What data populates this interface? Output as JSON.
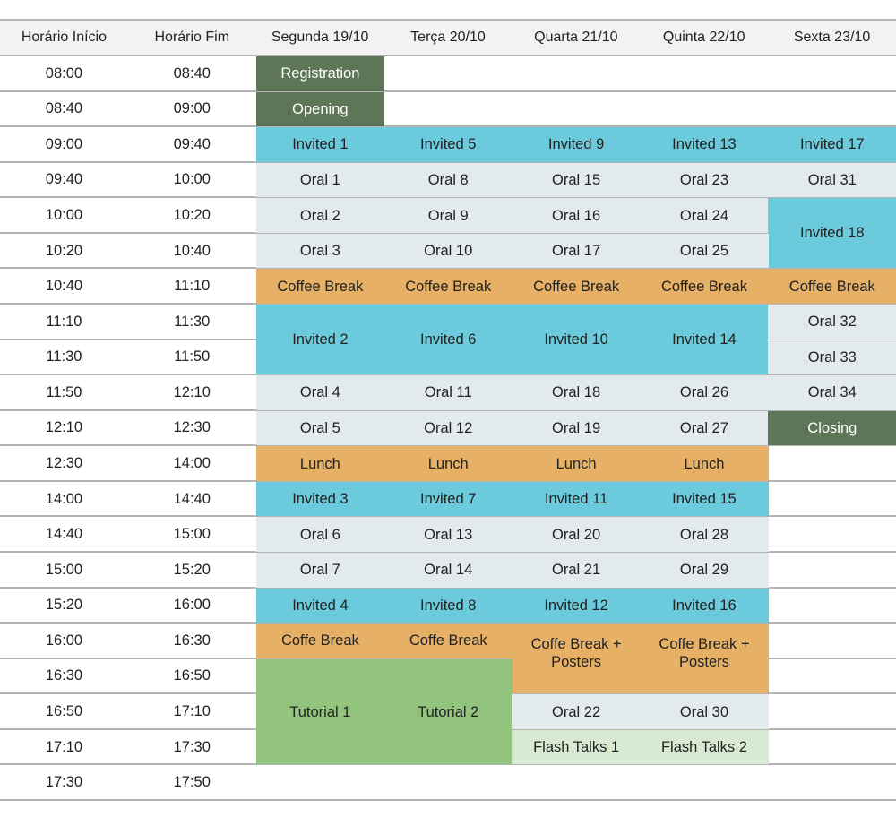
{
  "headers": [
    "Horário Início",
    "Horário Fim",
    "Segunda 19/10",
    "Terça 20/10",
    "Quarta 21/10",
    "Quinta 22/10",
    "Sexta 23/10"
  ],
  "times": [
    [
      "08:00",
      "08:40"
    ],
    [
      "08:40",
      "09:00"
    ],
    [
      "09:00",
      "09:40"
    ],
    [
      "09:40",
      "10:00"
    ],
    [
      "10:00",
      "10:20"
    ],
    [
      "10:20",
      "10:40"
    ],
    [
      "10:40",
      "11:10"
    ],
    [
      "11:10",
      "11:30"
    ],
    [
      "11:30",
      "11:50"
    ],
    [
      "11:50",
      "12:10"
    ],
    [
      "12:10",
      "12:30"
    ],
    [
      "12:30",
      "14:00"
    ],
    [
      "14:00",
      "14:40"
    ],
    [
      "14:40",
      "15:00"
    ],
    [
      "15:00",
      "15:20"
    ],
    [
      "15:20",
      "16:00"
    ],
    [
      "16:00",
      "16:30"
    ],
    [
      "16:30",
      "16:50"
    ],
    [
      "16:50",
      "17:10"
    ],
    [
      "17:10",
      "17:30"
    ],
    [
      "17:30",
      "17:50"
    ]
  ],
  "colors": {
    "ceremony": "#5e7658",
    "invited": "#6bcbdc",
    "oral": "#e2eaed",
    "break": "#e6b066",
    "tutorial": "#93c47d",
    "flash": "#d9ead3",
    "header": "#f2f2f2",
    "gridline": "#b3b3b3"
  },
  "events": [
    {
      "day": 0,
      "row": 0,
      "span": 1,
      "label": "Registration",
      "type": "ceremony"
    },
    {
      "day": 0,
      "row": 1,
      "span": 1,
      "label": "Opening",
      "type": "ceremony"
    },
    {
      "day": 0,
      "row": 2,
      "span": 1,
      "label": "Invited 1",
      "type": "invited"
    },
    {
      "day": 1,
      "row": 2,
      "span": 1,
      "label": "Invited 5",
      "type": "invited"
    },
    {
      "day": 2,
      "row": 2,
      "span": 1,
      "label": "Invited 9",
      "type": "invited"
    },
    {
      "day": 3,
      "row": 2,
      "span": 1,
      "label": "Invited 13",
      "type": "invited"
    },
    {
      "day": 4,
      "row": 2,
      "span": 1,
      "label": "Invited 17",
      "type": "invited"
    },
    {
      "day": 0,
      "row": 3,
      "span": 1,
      "label": "Oral 1",
      "type": "oral"
    },
    {
      "day": 1,
      "row": 3,
      "span": 1,
      "label": "Oral 8",
      "type": "oral"
    },
    {
      "day": 2,
      "row": 3,
      "span": 1,
      "label": "Oral 15",
      "type": "oral"
    },
    {
      "day": 3,
      "row": 3,
      "span": 1,
      "label": "Oral 23",
      "type": "oral"
    },
    {
      "day": 4,
      "row": 3,
      "span": 1,
      "label": "Oral 31",
      "type": "oral"
    },
    {
      "day": 0,
      "row": 4,
      "span": 1,
      "label": "Oral 2",
      "type": "oral"
    },
    {
      "day": 1,
      "row": 4,
      "span": 1,
      "label": "Oral 9",
      "type": "oral"
    },
    {
      "day": 2,
      "row": 4,
      "span": 1,
      "label": "Oral 16",
      "type": "oral"
    },
    {
      "day": 3,
      "row": 4,
      "span": 1,
      "label": "Oral 24",
      "type": "oral"
    },
    {
      "day": 4,
      "row": 4,
      "span": 2,
      "label": "Invited 18",
      "type": "invited"
    },
    {
      "day": 0,
      "row": 5,
      "span": 1,
      "label": "Oral 3",
      "type": "oral"
    },
    {
      "day": 1,
      "row": 5,
      "span": 1,
      "label": "Oral 10",
      "type": "oral"
    },
    {
      "day": 2,
      "row": 5,
      "span": 1,
      "label": "Oral 17",
      "type": "oral"
    },
    {
      "day": 3,
      "row": 5,
      "span": 1,
      "label": "Oral 25",
      "type": "oral"
    },
    {
      "day": 0,
      "row": 6,
      "span": 1,
      "label": "Coffee Break",
      "type": "break"
    },
    {
      "day": 1,
      "row": 6,
      "span": 1,
      "label": "Coffee Break",
      "type": "break"
    },
    {
      "day": 2,
      "row": 6,
      "span": 1,
      "label": "Coffee Break",
      "type": "break"
    },
    {
      "day": 3,
      "row": 6,
      "span": 1,
      "label": "Coffee Break",
      "type": "break"
    },
    {
      "day": 4,
      "row": 6,
      "span": 1,
      "label": "Coffee Break",
      "type": "break"
    },
    {
      "day": 0,
      "row": 7,
      "span": 2,
      "label": "Invited 2",
      "type": "invited"
    },
    {
      "day": 1,
      "row": 7,
      "span": 2,
      "label": "Invited 6",
      "type": "invited"
    },
    {
      "day": 2,
      "row": 7,
      "span": 2,
      "label": "Invited 10",
      "type": "invited"
    },
    {
      "day": 3,
      "row": 7,
      "span": 2,
      "label": "Invited 14",
      "type": "invited"
    },
    {
      "day": 4,
      "row": 7,
      "span": 1,
      "label": "Oral 32",
      "type": "oral"
    },
    {
      "day": 4,
      "row": 8,
      "span": 1,
      "label": "Oral 33",
      "type": "oral"
    },
    {
      "day": 0,
      "row": 9,
      "span": 1,
      "label": "Oral 4",
      "type": "oral"
    },
    {
      "day": 1,
      "row": 9,
      "span": 1,
      "label": "Oral 11",
      "type": "oral"
    },
    {
      "day": 2,
      "row": 9,
      "span": 1,
      "label": "Oral 18",
      "type": "oral"
    },
    {
      "day": 3,
      "row": 9,
      "span": 1,
      "label": "Oral 26",
      "type": "oral"
    },
    {
      "day": 4,
      "row": 9,
      "span": 1,
      "label": "Oral 34",
      "type": "oral"
    },
    {
      "day": 0,
      "row": 10,
      "span": 1,
      "label": "Oral 5",
      "type": "oral"
    },
    {
      "day": 1,
      "row": 10,
      "span": 1,
      "label": "Oral 12",
      "type": "oral"
    },
    {
      "day": 2,
      "row": 10,
      "span": 1,
      "label": "Oral 19",
      "type": "oral"
    },
    {
      "day": 3,
      "row": 10,
      "span": 1,
      "label": "Oral 27",
      "type": "oral"
    },
    {
      "day": 4,
      "row": 10,
      "span": 1,
      "label": "Closing",
      "type": "ceremony"
    },
    {
      "day": 0,
      "row": 11,
      "span": 1,
      "label": "Lunch",
      "type": "break"
    },
    {
      "day": 1,
      "row": 11,
      "span": 1,
      "label": "Lunch",
      "type": "break"
    },
    {
      "day": 2,
      "row": 11,
      "span": 1,
      "label": "Lunch",
      "type": "break"
    },
    {
      "day": 3,
      "row": 11,
      "span": 1,
      "label": "Lunch",
      "type": "break"
    },
    {
      "day": 0,
      "row": 12,
      "span": 1,
      "label": "Invited 3",
      "type": "invited"
    },
    {
      "day": 1,
      "row": 12,
      "span": 1,
      "label": "Invited 7",
      "type": "invited"
    },
    {
      "day": 2,
      "row": 12,
      "span": 1,
      "label": "Invited 11",
      "type": "invited"
    },
    {
      "day": 3,
      "row": 12,
      "span": 1,
      "label": "Invited 15",
      "type": "invited"
    },
    {
      "day": 0,
      "row": 13,
      "span": 1,
      "label": "Oral 6",
      "type": "oral"
    },
    {
      "day": 1,
      "row": 13,
      "span": 1,
      "label": "Oral 13",
      "type": "oral"
    },
    {
      "day": 2,
      "row": 13,
      "span": 1,
      "label": "Oral 20",
      "type": "oral"
    },
    {
      "day": 3,
      "row": 13,
      "span": 1,
      "label": "Oral 28",
      "type": "oral"
    },
    {
      "day": 0,
      "row": 14,
      "span": 1,
      "label": "Oral 7",
      "type": "oral"
    },
    {
      "day": 1,
      "row": 14,
      "span": 1,
      "label": "Oral 14",
      "type": "oral"
    },
    {
      "day": 2,
      "row": 14,
      "span": 1,
      "label": "Oral 21",
      "type": "oral"
    },
    {
      "day": 3,
      "row": 14,
      "span": 1,
      "label": "Oral 29",
      "type": "oral"
    },
    {
      "day": 0,
      "row": 15,
      "span": 1,
      "label": "Invited 4",
      "type": "invited"
    },
    {
      "day": 1,
      "row": 15,
      "span": 1,
      "label": "Invited 8",
      "type": "invited"
    },
    {
      "day": 2,
      "row": 15,
      "span": 1,
      "label": "Invited 12",
      "type": "invited"
    },
    {
      "day": 3,
      "row": 15,
      "span": 1,
      "label": "Invited 16",
      "type": "invited"
    },
    {
      "day": 0,
      "row": 16,
      "span": 1,
      "label": "Coffe Break",
      "type": "break"
    },
    {
      "day": 1,
      "row": 16,
      "span": 1,
      "label": "Coffe Break",
      "type": "break"
    },
    {
      "day": 2,
      "row": 16,
      "span": 2,
      "label": "Coffe Break + Posters",
      "type": "break"
    },
    {
      "day": 3,
      "row": 16,
      "span": 2,
      "label": "Coffe Break + Posters",
      "type": "break"
    },
    {
      "day": 0,
      "row": 17,
      "span": 3,
      "label": "Tutorial 1",
      "type": "tutorial"
    },
    {
      "day": 1,
      "row": 17,
      "span": 3,
      "label": "Tutorial 2",
      "type": "tutorial"
    },
    {
      "day": 2,
      "row": 18,
      "span": 1,
      "label": "Oral 22",
      "type": "oral"
    },
    {
      "day": 3,
      "row": 18,
      "span": 1,
      "label": "Oral 30",
      "type": "oral"
    },
    {
      "day": 2,
      "row": 19,
      "span": 1,
      "label": "Flash Talks 1",
      "type": "flash"
    },
    {
      "day": 3,
      "row": 19,
      "span": 1,
      "label": "Flash Talks 2",
      "type": "flash"
    }
  ]
}
